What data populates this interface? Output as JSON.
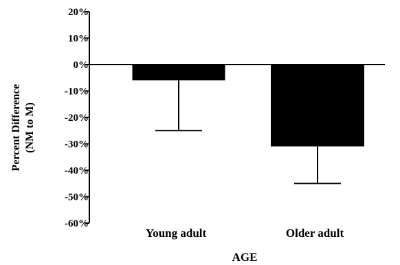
{
  "chart_data": {
    "type": "bar",
    "title": "",
    "xlabel": "AGE",
    "ylabel_lines": [
      "Percent Difference",
      "(NM to M)"
    ],
    "categories": [
      "Young adult",
      "Older adult"
    ],
    "values": [
      -6,
      -31
    ],
    "error_lower": [
      -25,
      -45
    ],
    "ylim": [
      -60,
      20
    ],
    "yticks": [
      20,
      10,
      0,
      -10,
      -20,
      -30,
      -40,
      -50,
      -60
    ],
    "ytick_labels": [
      "20%",
      "10%",
      "0%",
      "-10%",
      "-20%",
      "-30%",
      "-40%",
      "-50%",
      "-60%"
    ],
    "grid": false,
    "bar_color": "#000000",
    "axis_color": "#000000"
  }
}
